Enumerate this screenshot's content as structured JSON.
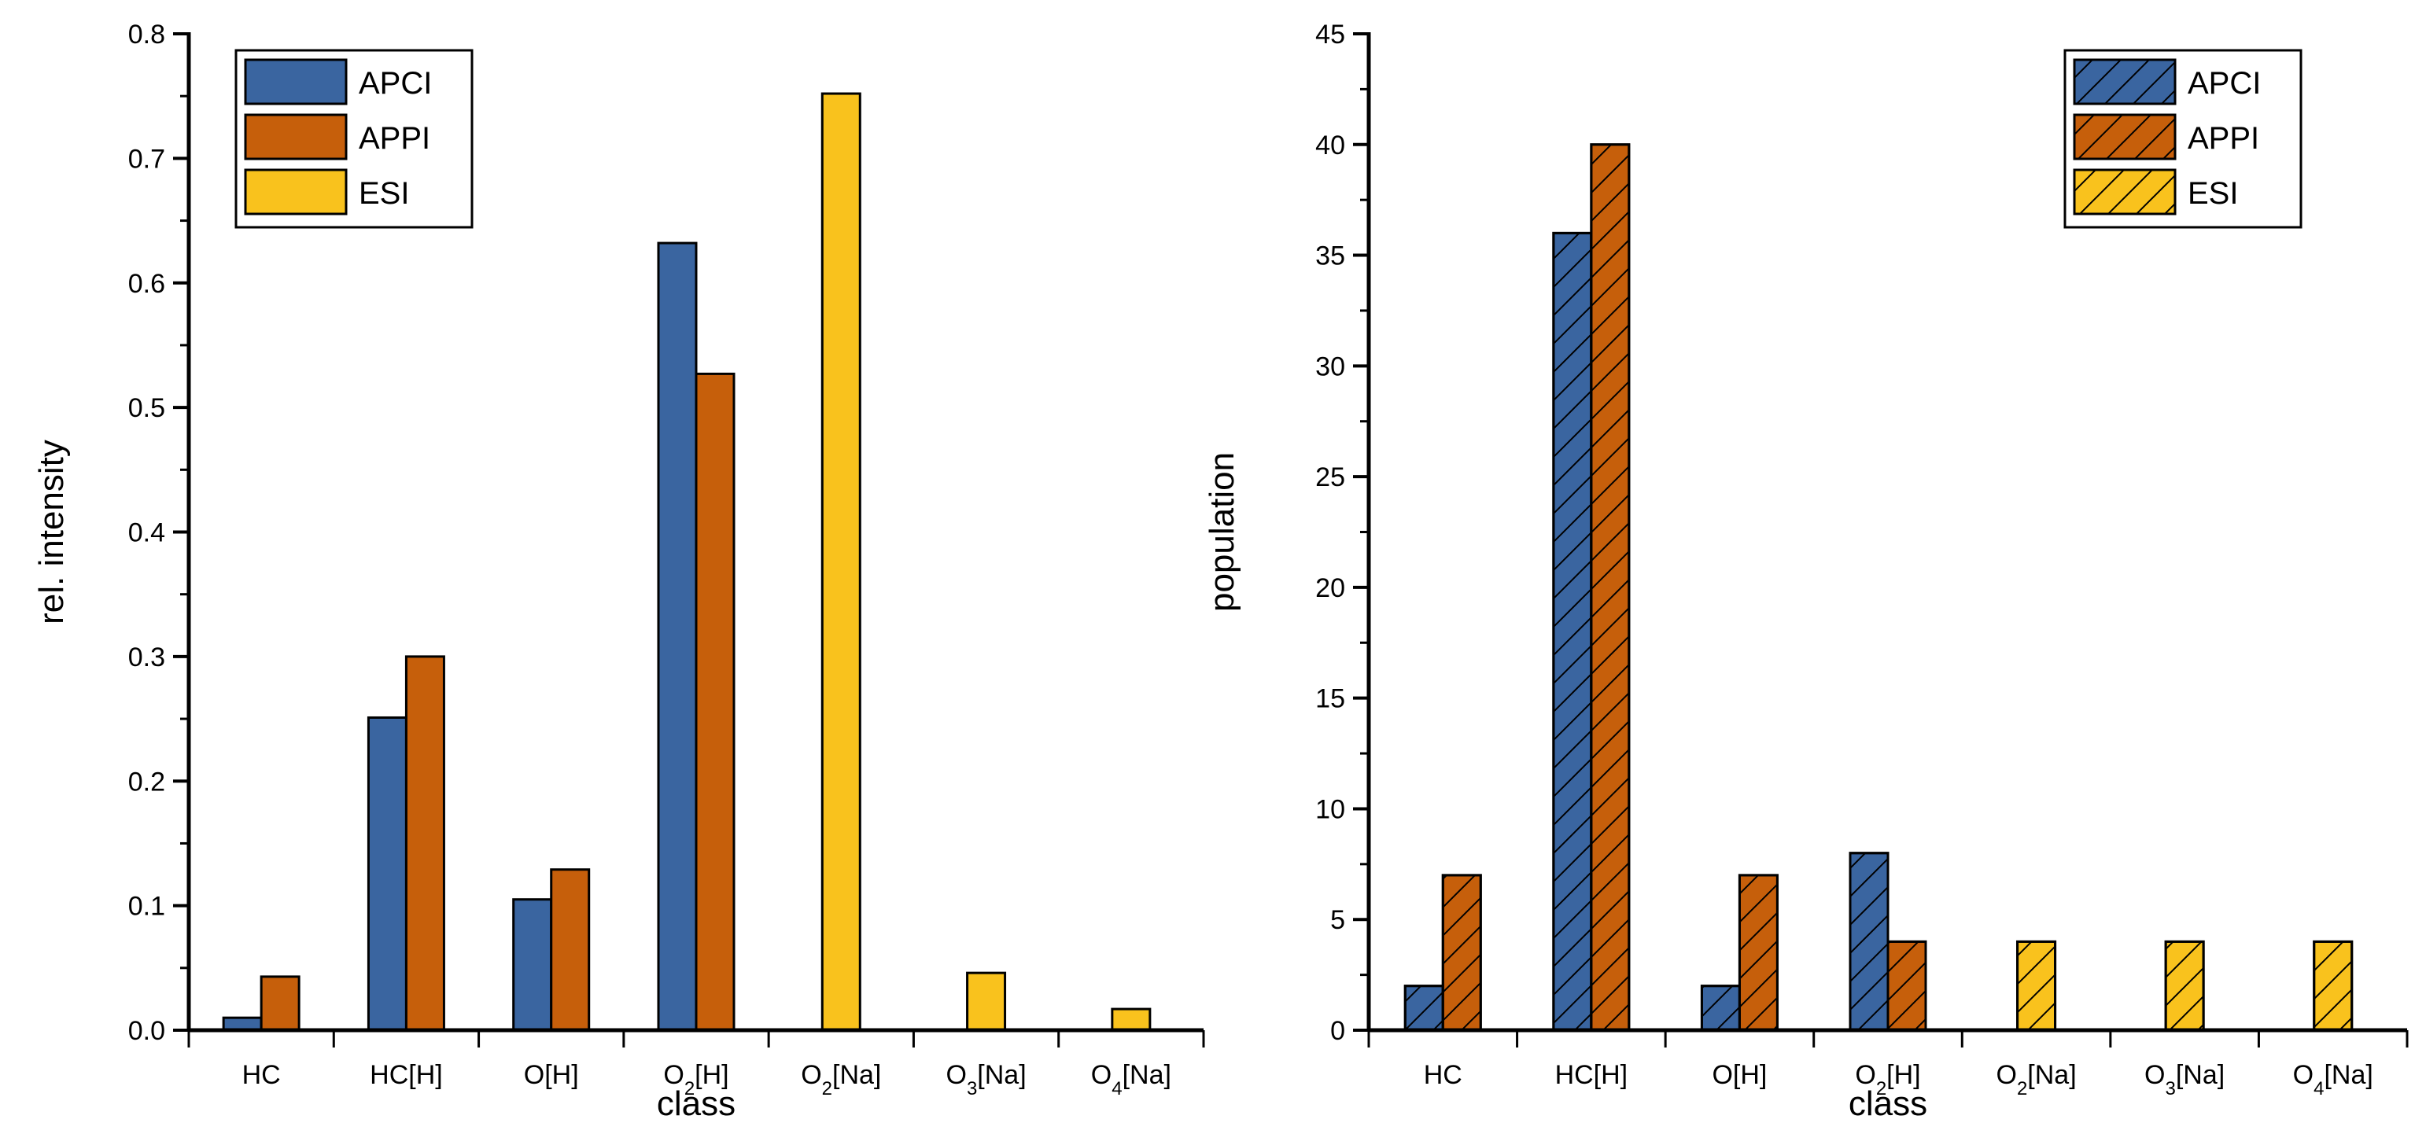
{
  "chart_data": [
    {
      "type": "bar",
      "xlabel": "class",
      "ylabel": "rel. intensity",
      "ylim": [
        0,
        0.8
      ],
      "yticks": [
        0.0,
        0.1,
        0.2,
        0.3,
        0.4,
        0.5,
        0.6,
        0.7,
        0.8
      ],
      "ytick_labels": [
        "0.0",
        "0.1",
        "0.2",
        "0.3",
        "0.4",
        "0.5",
        "0.6",
        "0.7",
        "0.8"
      ],
      "categories": [
        {
          "base": "HC",
          "sub": "",
          "rest": ""
        },
        {
          "base": "HC[H]",
          "sub": "",
          "rest": ""
        },
        {
          "base": "O[H]",
          "sub": "",
          "rest": ""
        },
        {
          "base": "O",
          "sub": "2",
          "rest": "[H]"
        },
        {
          "base": "O",
          "sub": "2",
          "rest": "[Na]"
        },
        {
          "base": "O",
          "sub": "3",
          "rest": "[Na]"
        },
        {
          "base": "O",
          "sub": "4",
          "rest": "[Na]"
        }
      ],
      "legend_position": "top-left",
      "hatched": false,
      "series": [
        {
          "name": "APCI",
          "color": "#3a65a0",
          "values": [
            0.01,
            0.251,
            0.105,
            0.632,
            0,
            0,
            0
          ]
        },
        {
          "name": "APPI",
          "color": "#c65f0b",
          "values": [
            0.043,
            0.3,
            0.129,
            0.527,
            0,
            0,
            0
          ]
        },
        {
          "name": "ESI",
          "color": "#f9c21d",
          "values": [
            0,
            0,
            0,
            0,
            0.752,
            0.046,
            0.017
          ]
        }
      ]
    },
    {
      "type": "bar",
      "xlabel": "class",
      "ylabel": "population",
      "ylim": [
        0,
        45
      ],
      "yticks": [
        0,
        5,
        10,
        15,
        20,
        25,
        30,
        35,
        40,
        45
      ],
      "ytick_labels": [
        "0",
        "5",
        "10",
        "15",
        "20",
        "25",
        "30",
        "35",
        "40",
        "45"
      ],
      "categories": [
        {
          "base": "HC",
          "sub": "",
          "rest": ""
        },
        {
          "base": "HC[H]",
          "sub": "",
          "rest": ""
        },
        {
          "base": "O[H]",
          "sub": "",
          "rest": ""
        },
        {
          "base": "O",
          "sub": "2",
          "rest": "[H]"
        },
        {
          "base": "O",
          "sub": "2",
          "rest": "[Na]"
        },
        {
          "base": "O",
          "sub": "3",
          "rest": "[Na]"
        },
        {
          "base": "O",
          "sub": "4",
          "rest": "[Na]"
        }
      ],
      "legend_position": "top-right",
      "hatched": true,
      "series": [
        {
          "name": "APCI",
          "color": "#3a65a0",
          "values": [
            2,
            36,
            2,
            8,
            0,
            0,
            0
          ]
        },
        {
          "name": "APPI",
          "color": "#c65f0b",
          "values": [
            7,
            40,
            7,
            4,
            0,
            0,
            0
          ]
        },
        {
          "name": "ESI",
          "color": "#f9c21d",
          "values": [
            0,
            0,
            0,
            0,
            4,
            4,
            4
          ]
        }
      ]
    }
  ]
}
